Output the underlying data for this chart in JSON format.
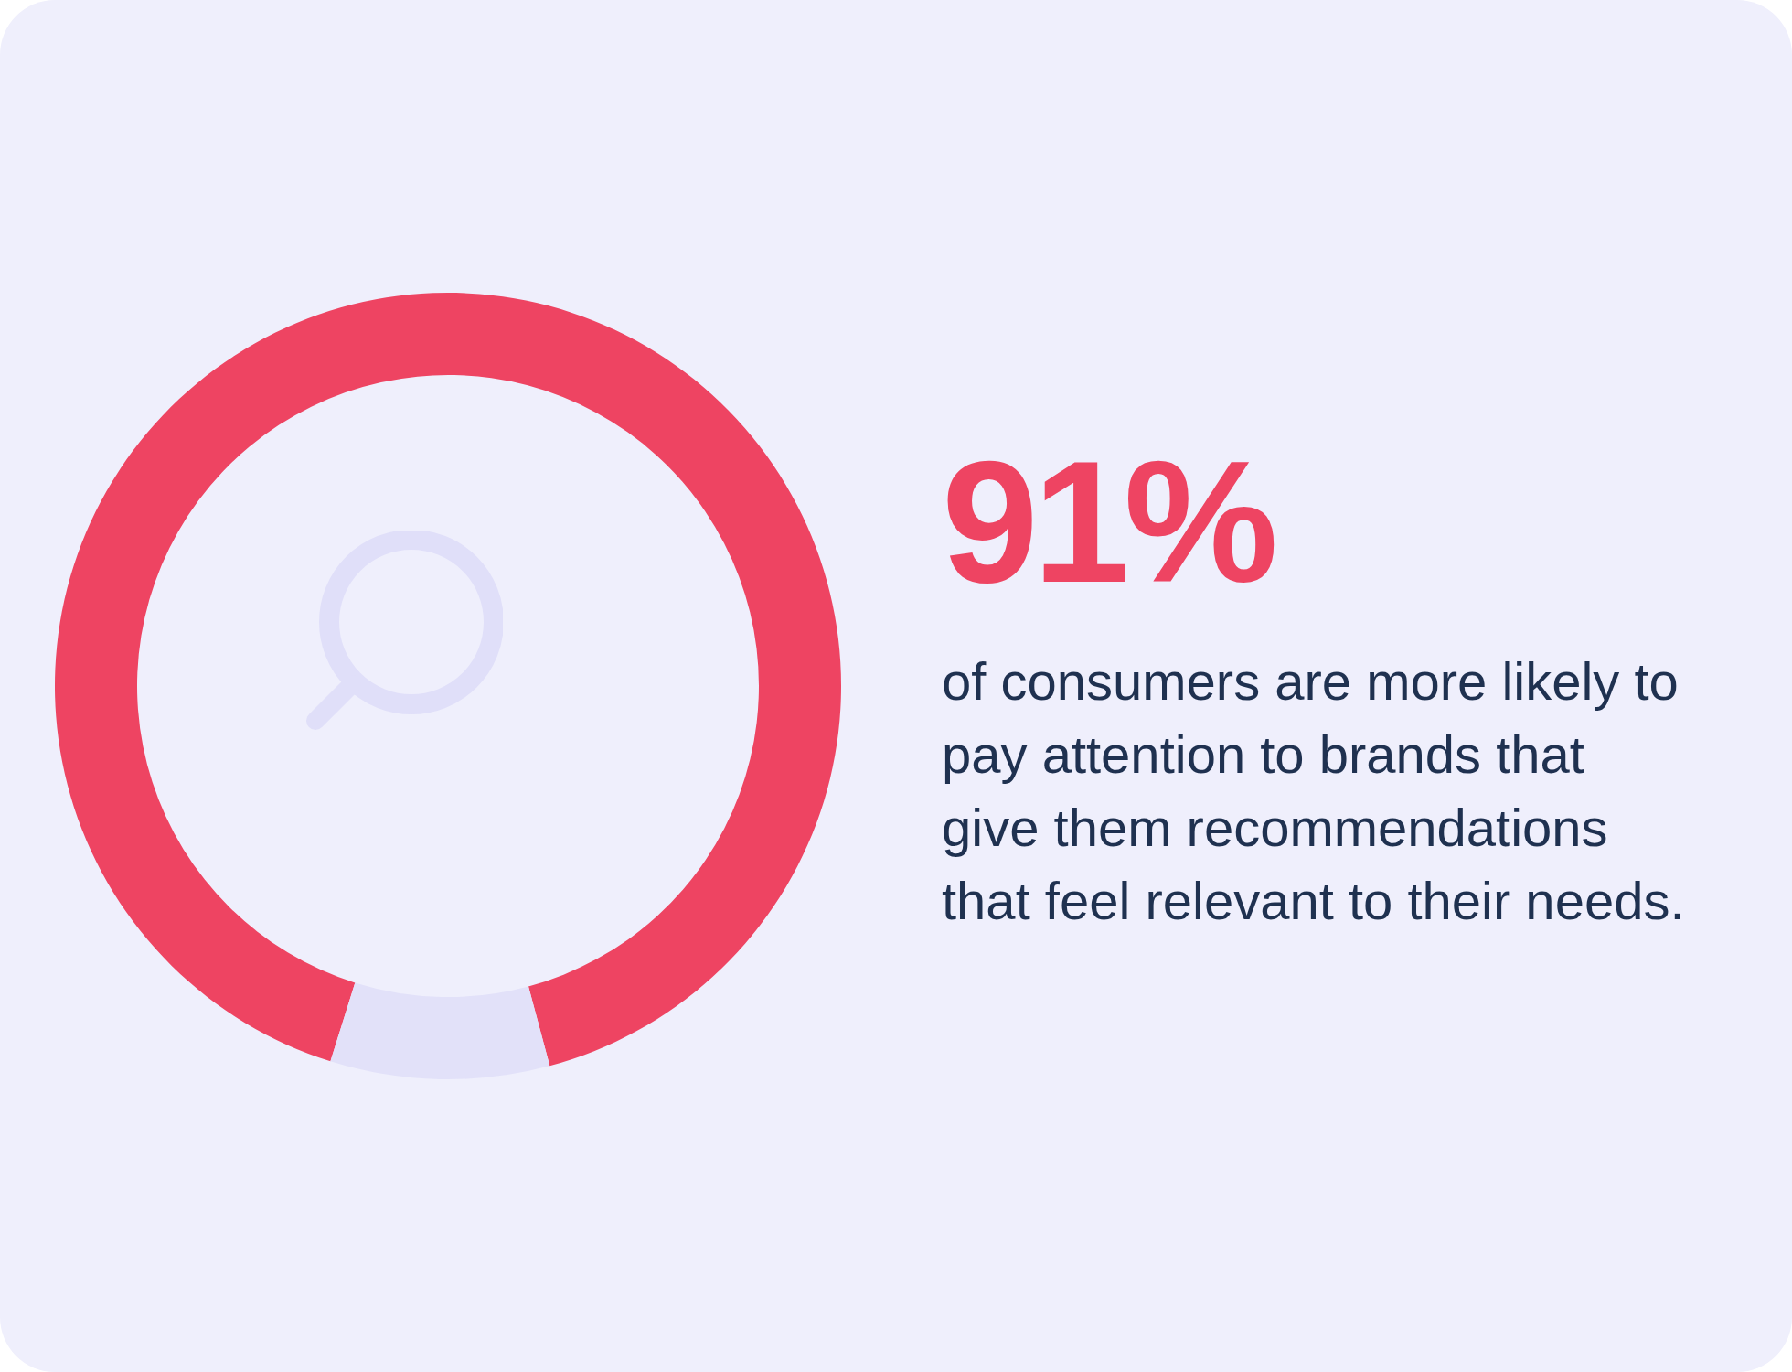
{
  "chart_data": {
    "type": "donut",
    "title": "91%",
    "subtitle": "of consumers are more likely to pay attention to brands that give them recommendations that feel relevant to their needs.",
    "categories": [
      null,
      null
    ],
    "values": [
      91,
      9
    ],
    "colors": [
      "#ee4462",
      "#e2e1f9"
    ],
    "legend": false
  }
}
